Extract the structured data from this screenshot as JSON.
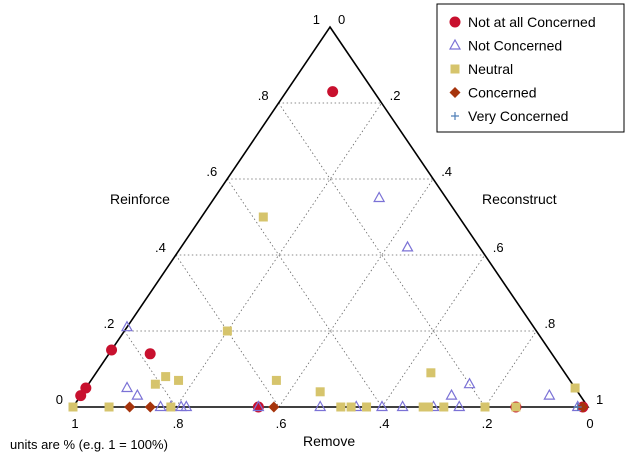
{
  "chart_data": {
    "type": "scatter",
    "subtype": "ternary",
    "axes": {
      "reinforce": {
        "label": "Reinforce",
        "ticks": [
          "1",
          ".8",
          ".6",
          ".4",
          ".2",
          "0"
        ]
      },
      "reconstruct": {
        "label": "Reconstruct",
        "ticks": [
          "0",
          ".2",
          ".4",
          ".6",
          ".8",
          "1"
        ]
      },
      "remove": {
        "label": "Remove",
        "ticks": [
          "1",
          ".8",
          ".6",
          ".4",
          ".2",
          "0"
        ]
      }
    },
    "grid": true,
    "gridlines": [
      0.2,
      0.4,
      0.6,
      0.8
    ],
    "note": "units are % (e.g. 1 = 100%)",
    "legend_position": "top-right",
    "series": [
      {
        "name": "Not at all Concerned",
        "marker": "circle",
        "color": "#c8102e",
        "points": [
          {
            "reinforce": 0.15,
            "reconstruct": 0.0
          },
          {
            "reinforce": 0.05,
            "reconstruct": 0.0
          },
          {
            "reinforce": 0.03,
            "reconstruct": 0.0
          },
          {
            "reinforce": 0.14,
            "reconstruct": 0.08
          },
          {
            "reinforce": 0.83,
            "reconstruct": 0.09
          },
          {
            "reinforce": 0.0,
            "reconstruct": 0.36
          },
          {
            "reinforce": 0.0,
            "reconstruct": 0.86
          },
          {
            "reinforce": 0.0,
            "reconstruct": 0.99
          }
        ]
      },
      {
        "name": "Not Concerned",
        "marker": "triangle",
        "color": "#7b72d6",
        "points": [
          {
            "reinforce": 0.21,
            "reconstruct": 0.0
          },
          {
            "reinforce": 0.05,
            "reconstruct": 0.08
          },
          {
            "reinforce": 0.03,
            "reconstruct": 0.11
          },
          {
            "reinforce": 0.0,
            "reconstruct": 0.17
          },
          {
            "reinforce": 0.0,
            "reconstruct": 0.19
          },
          {
            "reinforce": 0.0,
            "reconstruct": 0.21
          },
          {
            "reinforce": 0.0,
            "reconstruct": 0.22
          },
          {
            "reinforce": 0.0,
            "reconstruct": 0.36
          },
          {
            "reinforce": 0.0,
            "reconstruct": 0.48
          },
          {
            "reinforce": 0.0,
            "reconstruct": 0.55
          },
          {
            "reinforce": 0.0,
            "reconstruct": 0.6
          },
          {
            "reinforce": 0.0,
            "reconstruct": 0.64
          },
          {
            "reinforce": 0.0,
            "reconstruct": 0.7
          },
          {
            "reinforce": 0.0,
            "reconstruct": 0.75
          },
          {
            "reinforce": 0.03,
            "reconstruct": 0.72
          },
          {
            "reinforce": 0.06,
            "reconstruct": 0.74
          },
          {
            "reinforce": 0.03,
            "reconstruct": 0.91
          },
          {
            "reinforce": 0.0,
            "reconstruct": 0.98
          },
          {
            "reinforce": 0.55,
            "reconstruct": 0.32
          },
          {
            "reinforce": 0.42,
            "reconstruct": 0.44
          }
        ]
      },
      {
        "name": "Neutral",
        "marker": "square",
        "color": "#d6c46c",
        "points": [
          {
            "reinforce": 0.0,
            "reconstruct": 0.0
          },
          {
            "reinforce": 0.0,
            "reconstruct": 0.07
          },
          {
            "reinforce": 0.0,
            "reconstruct": 0.19
          },
          {
            "reinforce": 0.06,
            "reconstruct": 0.13
          },
          {
            "reinforce": 0.08,
            "reconstruct": 0.14
          },
          {
            "reinforce": 0.07,
            "reconstruct": 0.17
          },
          {
            "reinforce": 0.2,
            "reconstruct": 0.2
          },
          {
            "reinforce": 0.5,
            "reconstruct": 0.12
          },
          {
            "reinforce": 0.07,
            "reconstruct": 0.36
          },
          {
            "reinforce": 0.04,
            "reconstruct": 0.46
          },
          {
            "reinforce": 0.0,
            "reconstruct": 0.52
          },
          {
            "reinforce": 0.0,
            "reconstruct": 0.54
          },
          {
            "reinforce": 0.0,
            "reconstruct": 0.57
          },
          {
            "reinforce": 0.09,
            "reconstruct": 0.65
          },
          {
            "reinforce": 0.0,
            "reconstruct": 0.68
          },
          {
            "reinforce": 0.0,
            "reconstruct": 0.69
          },
          {
            "reinforce": 0.0,
            "reconstruct": 0.72
          },
          {
            "reinforce": 0.0,
            "reconstruct": 0.8
          },
          {
            "reinforce": 0.0,
            "reconstruct": 0.86
          },
          {
            "reinforce": 0.05,
            "reconstruct": 0.95
          }
        ]
      },
      {
        "name": "Concerned",
        "marker": "diamond",
        "color": "#a6340c",
        "points": [
          {
            "reinforce": 0.0,
            "reconstruct": 0.15
          },
          {
            "reinforce": 0.0,
            "reconstruct": 0.11
          },
          {
            "reinforce": 0.0,
            "reconstruct": 0.39
          },
          {
            "reinforce": 0.0,
            "reconstruct": 0.99
          }
        ]
      },
      {
        "name": "Very Concerned",
        "marker": "plus",
        "color": "#4f7fb8",
        "points": [
          {
            "reinforce": 0.0,
            "reconstruct": 0.98
          }
        ]
      }
    ]
  }
}
